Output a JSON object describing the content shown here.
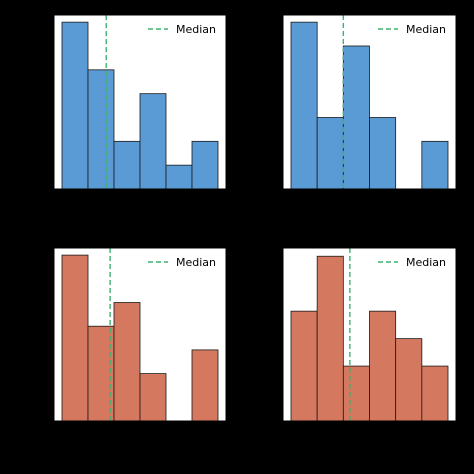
{
  "background": "#000000",
  "chart_data": [
    {
      "type": "bar",
      "subtype": "histogram",
      "bin_count": 6,
      "values": [
        7,
        5,
        2,
        4,
        1,
        2
      ],
      "ylim": [
        0,
        7.3
      ],
      "median_bin_position": 1.7,
      "color": "#5b9bd5",
      "median_color": "#3cb371",
      "legend": {
        "label": "Median",
        "placement": "upper-right"
      }
    },
    {
      "type": "bar",
      "subtype": "histogram",
      "bin_count": 6,
      "values": [
        7,
        3,
        6,
        3,
        0,
        2
      ],
      "ylim": [
        0,
        7.3
      ],
      "median_bin_position": 2.0,
      "color": "#5b9bd5",
      "median_color": "#3cb371",
      "legend": {
        "label": "Median",
        "placement": "upper-right"
      }
    },
    {
      "type": "bar",
      "subtype": "histogram",
      "bin_count": 6,
      "values": [
        7,
        4,
        5,
        2,
        0,
        3
      ],
      "ylim": [
        0,
        7.3
      ],
      "median_bin_position": 1.85,
      "color": "#d4785f",
      "median_color": "#3cb371",
      "legend": {
        "label": "Median",
        "placement": "upper-right"
      }
    },
    {
      "type": "bar",
      "subtype": "histogram",
      "bin_count": 6,
      "values": [
        4,
        6,
        2,
        4,
        3,
        2
      ],
      "ylim": [
        0,
        6.3
      ],
      "median_bin_position": 2.25,
      "color": "#d4785f",
      "median_color": "#3cb371",
      "legend": {
        "label": "Median",
        "placement": "upper-right"
      }
    }
  ]
}
